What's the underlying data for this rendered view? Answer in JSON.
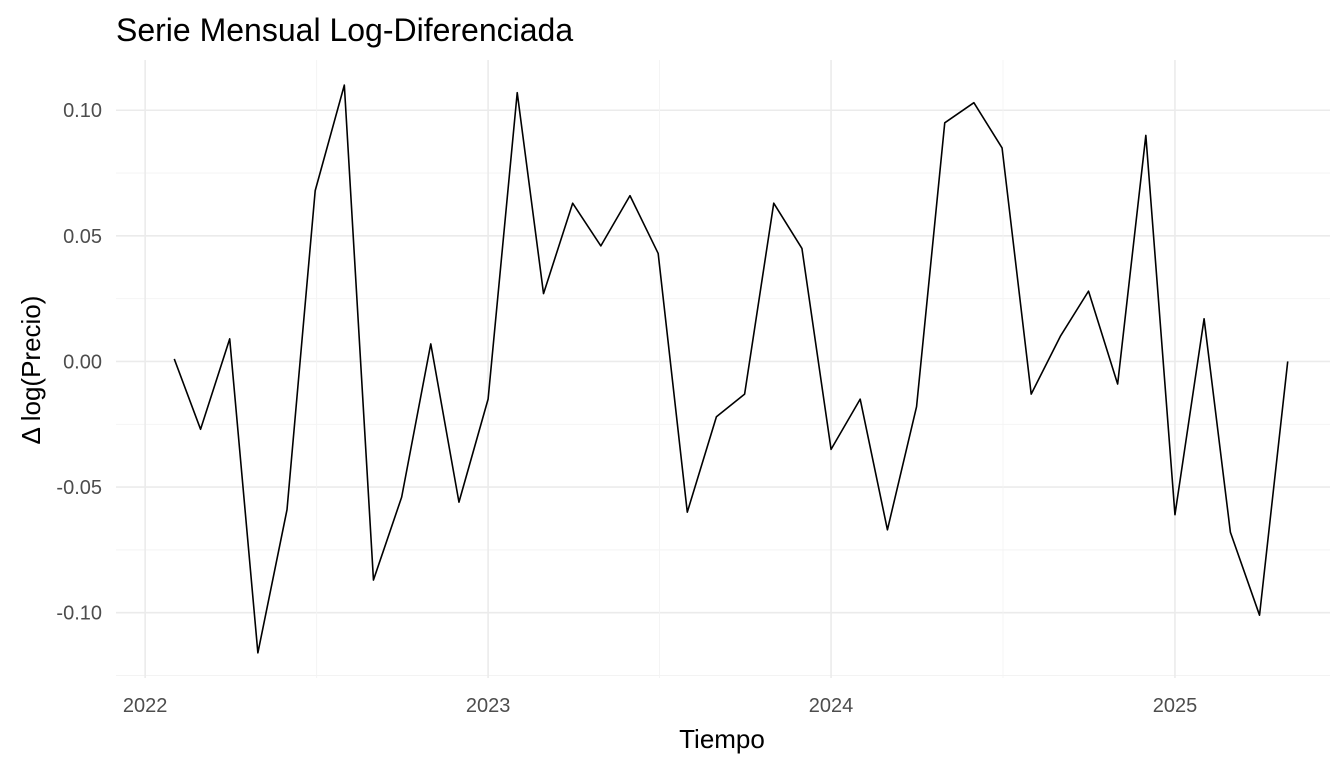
{
  "chart_data": {
    "type": "line",
    "title": "Serie Mensual Log-Diferenciada",
    "xlabel": "Tiempo",
    "ylabel": "Δ log(Precio)",
    "xlim": [
      "2021-12-01",
      "2025-06-15"
    ],
    "ylim": [
      -0.126,
      0.12
    ],
    "x_ticks": [
      "2022",
      "2023",
      "2024",
      "2025"
    ],
    "x_tick_dates": [
      "2022-01-01",
      "2023-01-01",
      "2024-01-01",
      "2025-01-01"
    ],
    "y_ticks": [
      0.1,
      0.05,
      0.0,
      -0.05,
      -0.1
    ],
    "y_tick_labels": [
      "0.10",
      "0.05",
      "0.00",
      "-0.05",
      "-0.10"
    ],
    "grid": true,
    "legend": "none",
    "line_color": "#000000",
    "series": [
      {
        "x": [
          "2022-02-01",
          "2022-03-01",
          "2022-04-01",
          "2022-05-01",
          "2022-06-01",
          "2022-07-01",
          "2022-08-01",
          "2022-09-01",
          "2022-10-01",
          "2022-11-01",
          "2022-12-01",
          "2023-01-01",
          "2023-02-01",
          "2023-03-01",
          "2023-04-01",
          "2023-05-01",
          "2023-06-01",
          "2023-07-01",
          "2023-08-01",
          "2023-09-01",
          "2023-10-01",
          "2023-11-01",
          "2023-12-01",
          "2024-01-01",
          "2024-02-01",
          "2024-03-01",
          "2024-04-01",
          "2024-05-01",
          "2024-06-01",
          "2024-07-01",
          "2024-08-01",
          "2024-09-01",
          "2024-10-01",
          "2024-11-01",
          "2024-12-01",
          "2025-01-01",
          "2025-02-01",
          "2025-03-01",
          "2025-04-01",
          "2025-05-01"
        ],
        "values": [
          0.001,
          -0.027,
          0.009,
          -0.116,
          -0.059,
          0.068,
          0.11,
          -0.087,
          -0.054,
          0.007,
          -0.056,
          -0.015,
          0.107,
          0.027,
          0.063,
          0.046,
          0.066,
          0.043,
          -0.06,
          -0.022,
          -0.013,
          0.063,
          0.045,
          -0.035,
          -0.015,
          -0.067,
          -0.018,
          0.095,
          0.103,
          0.085,
          -0.013,
          0.01,
          0.028,
          -0.009,
          0.09,
          -0.061,
          0.017,
          -0.068,
          -0.101,
          0.0
        ]
      }
    ]
  }
}
